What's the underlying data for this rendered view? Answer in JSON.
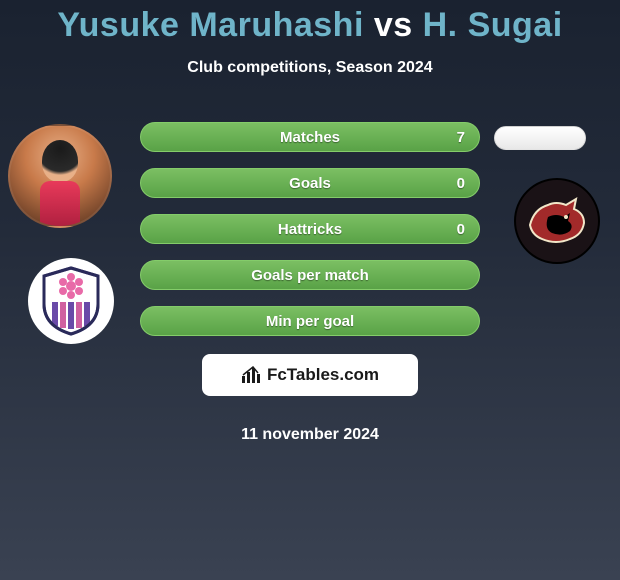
{
  "title": {
    "player1": "Yusuke Maruhashi",
    "vs": "vs",
    "player2": "H. Sugai",
    "color_player": "#6fb4c9",
    "color_vs": "#ffffff"
  },
  "subtitle": "Club competitions, Season 2024",
  "date": "11 november 2024",
  "stats": {
    "row_border_color": "#84cc6a",
    "row_bg_start": "#7bbf63",
    "row_bg_end": "#59a247",
    "text_color": "#ffffff",
    "rows": [
      {
        "label": "Matches",
        "left": "",
        "right": "7"
      },
      {
        "label": "Goals",
        "left": "",
        "right": "0"
      },
      {
        "label": "Hattricks",
        "left": "",
        "right": "0"
      },
      {
        "label": "Goals per match",
        "left": "",
        "right": ""
      },
      {
        "label": "Min per goal",
        "left": "",
        "right": ""
      }
    ]
  },
  "brand": {
    "text": "FcTables.com",
    "bg": "#ffffff",
    "text_color": "#1a1a1a",
    "icon_color": "#1a1a1a"
  },
  "background": {
    "top": "#1a2230",
    "mid": "#232b3a",
    "bottom": "#3a4252"
  },
  "club_left": {
    "name": "club-badge-left",
    "shield_border": "#2a2a5a",
    "stripe1": "#6a4aa8",
    "stripe2": "#d060a0",
    "flower": "#e86aa8",
    "bg": "#ffffff"
  },
  "club_right": {
    "name": "club-badge-right",
    "bg": "#1a1216",
    "body": "#a22a2a",
    "outline": "#f2e6c8",
    "dark": "#000000"
  },
  "player_right_pill": {
    "bg": "#ffffff"
  }
}
